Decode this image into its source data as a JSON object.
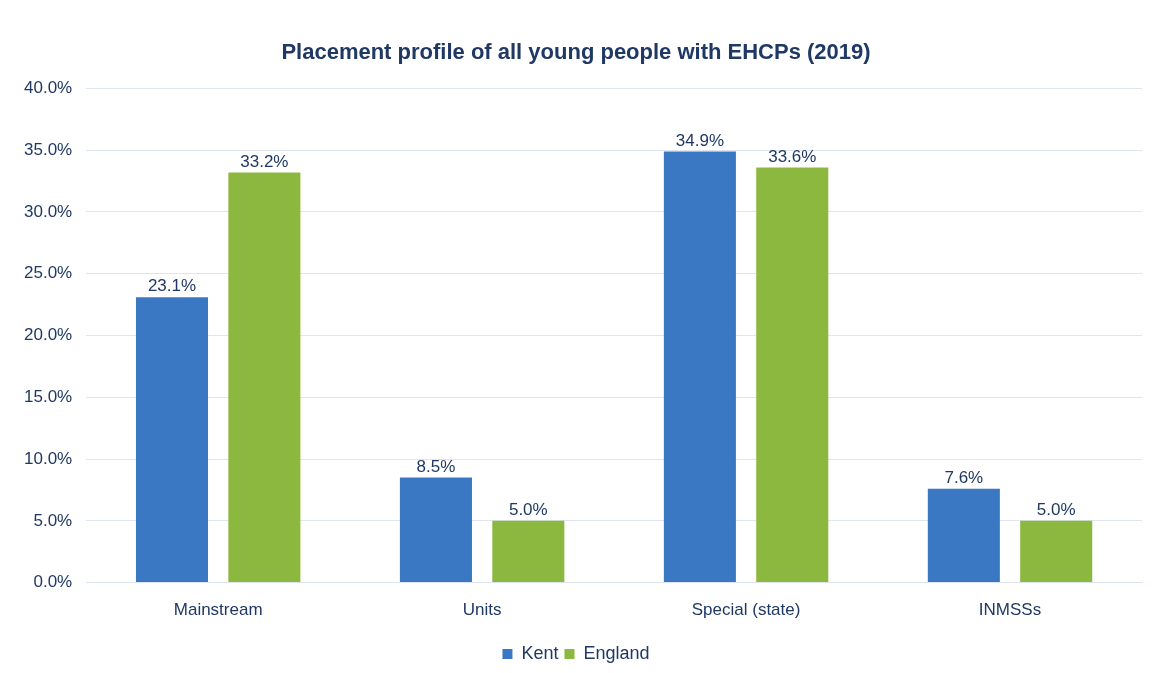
{
  "chart_data": {
    "type": "bar",
    "title": "Placement profile of all young people with EHCPs (2019)",
    "categories": [
      "Mainstream",
      "Units",
      "Special (state)",
      "INMSSs"
    ],
    "series": [
      {
        "name": "Kent",
        "color": "#3a78c4",
        "values": [
          23.1,
          8.5,
          34.9,
          7.6
        ],
        "value_labels": [
          "23.1%",
          "8.5%",
          "34.9%",
          "7.6%"
        ]
      },
      {
        "name": "England",
        "color": "#8cb840",
        "values": [
          33.2,
          5.0,
          33.6,
          5.0
        ],
        "value_labels": [
          "33.2%",
          "5.0%",
          "33.6%",
          "5.0%"
        ]
      }
    ],
    "ylim": [
      0,
      40
    ],
    "yticks": [
      {
        "value": 0,
        "label": "0.0%"
      },
      {
        "value": 5,
        "label": "5.0%"
      },
      {
        "value": 10,
        "label": "10.0%"
      },
      {
        "value": 15,
        "label": "15.0%"
      },
      {
        "value": 20,
        "label": "20.0%"
      },
      {
        "value": 25,
        "label": "25.0%"
      },
      {
        "value": 30,
        "label": "30.0%"
      },
      {
        "value": 35,
        "label": "35.0%"
      },
      {
        "value": 40,
        "label": "40.0%"
      }
    ],
    "grid": "y",
    "legend": "bottom"
  }
}
